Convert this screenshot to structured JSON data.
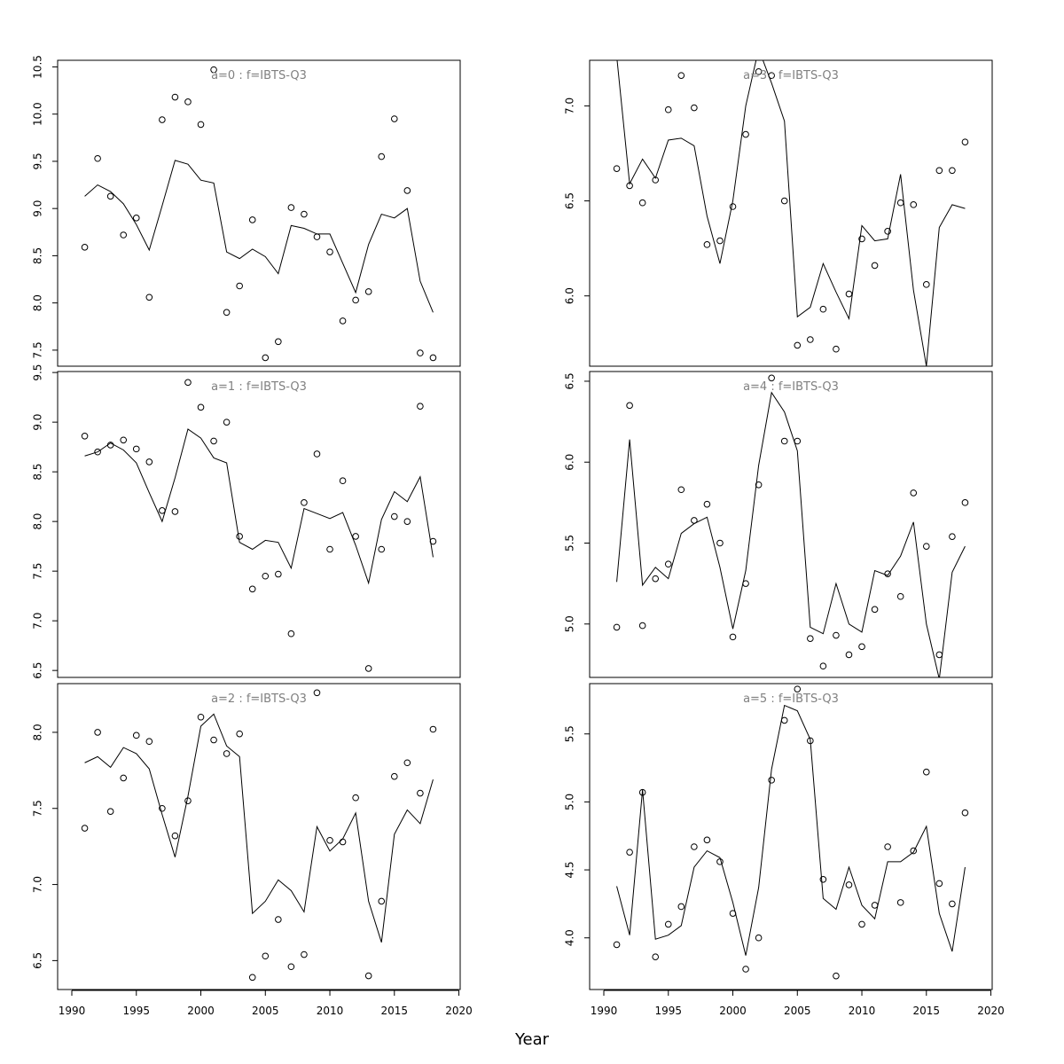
{
  "figure": {
    "xlabel": "Year"
  },
  "chart_data": [
    {
      "type": "scatter+line",
      "title": "a=0 : f=IBTS-Q3",
      "xlim": [
        1988.9,
        2020.1
      ],
      "ylim": [
        7.33,
        10.57
      ],
      "yticks": [
        "7.5",
        "8.0",
        "8.5",
        "9.0",
        "9.5",
        "10.0",
        "10.5"
      ],
      "x": [
        1991,
        1992,
        1993,
        1994,
        1995,
        1996,
        1997,
        1998,
        1999,
        2000,
        2001,
        2002,
        2003,
        2004,
        2005,
        2006,
        2007,
        2008,
        2009,
        2010,
        2011,
        2012,
        2013,
        2014,
        2015,
        2016,
        2017,
        2018
      ],
      "series": [
        {
          "kind": "points",
          "values": [
            8.59,
            9.53,
            9.13,
            8.72,
            8.9,
            8.06,
            9.94,
            10.18,
            10.13,
            9.89,
            10.47,
            7.9,
            8.18,
            8.88,
            7.42,
            7.59,
            9.01,
            8.94,
            8.7,
            8.54,
            7.81,
            8.03,
            8.12,
            9.55,
            9.95,
            9.19,
            7.47,
            7.42
          ]
        },
        {
          "kind": "line",
          "values": [
            9.13,
            9.25,
            9.18,
            9.05,
            8.83,
            8.56,
            9.03,
            9.51,
            9.47,
            9.3,
            9.27,
            8.54,
            8.47,
            8.57,
            8.49,
            8.31,
            8.82,
            8.79,
            8.73,
            8.73,
            8.42,
            8.11,
            8.62,
            8.94,
            8.9,
            9.0,
            8.23,
            7.9
          ]
        }
      ]
    },
    {
      "type": "scatter+line",
      "title": "a=3 : f=IBTS-Q3",
      "xlim": [
        1988.9,
        2020.1
      ],
      "ylim": [
        5.63,
        7.24
      ],
      "yticks": [
        "6.0",
        "6.5",
        "7.0"
      ],
      "x": [
        1991,
        1992,
        1993,
        1994,
        1995,
        1996,
        1997,
        1998,
        1999,
        2000,
        2001,
        2002,
        2003,
        2004,
        2005,
        2006,
        2007,
        2008,
        2009,
        2010,
        2011,
        2012,
        2013,
        2014,
        2015,
        2016,
        2017,
        2018
      ],
      "series": [
        {
          "kind": "points",
          "values": [
            6.67,
            6.58,
            6.49,
            6.61,
            6.98,
            7.16,
            6.99,
            6.27,
            6.29,
            6.47,
            6.85,
            7.18,
            7.16,
            6.5,
            5.74,
            5.77,
            5.93,
            5.72,
            6.01,
            6.3,
            6.16,
            6.34,
            6.49,
            6.48,
            6.06,
            6.66,
            6.66,
            6.81
          ]
        },
        {
          "kind": "line",
          "values": [
            7.26,
            6.59,
            6.72,
            6.62,
            6.82,
            6.83,
            6.79,
            6.42,
            6.17,
            6.5,
            7.0,
            7.3,
            7.12,
            6.92,
            5.89,
            5.94,
            6.17,
            6.02,
            5.88,
            6.37,
            6.29,
            6.3,
            6.64,
            6.03,
            5.63,
            6.36,
            6.48,
            6.46
          ]
        }
      ]
    },
    {
      "type": "scatter+line",
      "title": "a=1 : f=IBTS-Q3",
      "xlim": [
        1988.9,
        2020.1
      ],
      "ylim": [
        6.43,
        9.51
      ],
      "yticks": [
        "6.5",
        "7.0",
        "7.5",
        "8.0",
        "8.5",
        "9.0",
        "9.5"
      ],
      "x": [
        1991,
        1992,
        1993,
        1994,
        1995,
        1996,
        1997,
        1998,
        1999,
        2000,
        2001,
        2002,
        2003,
        2004,
        2005,
        2006,
        2007,
        2008,
        2009,
        2010,
        2011,
        2012,
        2013,
        2014,
        2015,
        2016,
        2017,
        2018
      ],
      "series": [
        {
          "kind": "points",
          "values": [
            8.86,
            8.7,
            8.77,
            8.82,
            8.73,
            8.6,
            8.11,
            8.1,
            9.4,
            9.15,
            8.81,
            9.0,
            7.85,
            7.32,
            7.45,
            7.47,
            6.87,
            8.19,
            8.68,
            7.72,
            8.41,
            7.85,
            6.52,
            7.72,
            8.05,
            8.0,
            9.16,
            7.8
          ]
        },
        {
          "kind": "line",
          "values": [
            8.66,
            8.7,
            8.79,
            8.72,
            8.59,
            8.29,
            8.0,
            8.44,
            8.93,
            8.84,
            8.64,
            8.59,
            7.79,
            7.72,
            7.81,
            7.79,
            7.53,
            8.13,
            8.08,
            8.03,
            8.09,
            7.76,
            7.38,
            8.02,
            8.3,
            8.2,
            8.45,
            7.64
          ]
        }
      ]
    },
    {
      "type": "scatter+line",
      "title": "a=4 : f=IBTS-Q3",
      "xlim": [
        1988.9,
        2020.1
      ],
      "ylim": [
        4.67,
        6.56
      ],
      "yticks": [
        "5.0",
        "5.5",
        "6.0",
        "6.5"
      ],
      "x": [
        1991,
        1992,
        1993,
        1994,
        1995,
        1996,
        1997,
        1998,
        1999,
        2000,
        2001,
        2002,
        2003,
        2004,
        2005,
        2006,
        2007,
        2008,
        2009,
        2010,
        2011,
        2012,
        2013,
        2014,
        2015,
        2016,
        2017,
        2018
      ],
      "series": [
        {
          "kind": "points",
          "values": [
            4.98,
            6.35,
            4.99,
            5.28,
            5.37,
            5.83,
            5.64,
            5.74,
            5.5,
            4.92,
            5.25,
            5.86,
            6.52,
            6.13,
            6.13,
            4.91,
            4.74,
            4.93,
            4.81,
            4.86,
            5.09,
            5.31,
            5.17,
            5.81,
            5.48,
            4.81,
            5.54,
            5.75
          ]
        },
        {
          "kind": "line",
          "values": [
            5.26,
            6.14,
            5.24,
            5.35,
            5.28,
            5.56,
            5.62,
            5.66,
            5.35,
            4.97,
            5.33,
            5.98,
            6.43,
            6.31,
            6.07,
            4.98,
            4.94,
            5.25,
            5.0,
            4.95,
            5.33,
            5.3,
            5.42,
            5.63,
            5.0,
            4.66,
            5.32,
            5.48
          ]
        }
      ]
    },
    {
      "type": "scatter+line",
      "title": "a=2 : f=IBTS-Q3",
      "xlim": [
        1988.9,
        2020.1
      ],
      "ylim": [
        6.31,
        8.32
      ],
      "yticks": [
        "6.5",
        "7.0",
        "7.5",
        "8.0"
      ],
      "x": [
        1991,
        1992,
        1993,
        1994,
        1995,
        1996,
        1997,
        1998,
        1999,
        2000,
        2001,
        2002,
        2003,
        2004,
        2005,
        2006,
        2007,
        2008,
        2009,
        2010,
        2011,
        2012,
        2013,
        2014,
        2015,
        2016,
        2017,
        2018
      ],
      "series": [
        {
          "kind": "points",
          "values": [
            7.37,
            8.0,
            7.48,
            7.7,
            7.98,
            7.94,
            7.5,
            7.32,
            7.55,
            8.1,
            7.95,
            7.86,
            7.99,
            6.39,
            6.53,
            6.77,
            6.46,
            6.54,
            8.26,
            7.29,
            7.28,
            7.57,
            6.4,
            6.89,
            7.71,
            7.8,
            7.6,
            8.02
          ]
        },
        {
          "kind": "line",
          "values": [
            7.8,
            7.84,
            7.77,
            7.9,
            7.86,
            7.76,
            7.46,
            7.18,
            7.58,
            8.04,
            8.12,
            7.91,
            7.84,
            6.81,
            6.89,
            7.03,
            6.96,
            6.82,
            7.38,
            7.22,
            7.3,
            7.47,
            6.89,
            6.62,
            7.33,
            7.49,
            7.4,
            7.69
          ]
        }
      ]
    },
    {
      "type": "scatter+line",
      "title": "a=5 : f=IBTS-Q3",
      "xlim": [
        1988.9,
        2020.1
      ],
      "ylim": [
        3.62,
        5.87
      ],
      "yticks": [
        "4.0",
        "4.5",
        "5.0",
        "5.5"
      ],
      "x": [
        1991,
        1992,
        1993,
        1994,
        1995,
        1996,
        1997,
        1998,
        1999,
        2000,
        2001,
        2002,
        2003,
        2004,
        2005,
        2006,
        2007,
        2008,
        2009,
        2010,
        2011,
        2012,
        2013,
        2014,
        2015,
        2016,
        2017,
        2018
      ],
      "series": [
        {
          "kind": "points",
          "values": [
            3.95,
            4.63,
            5.07,
            3.86,
            4.1,
            4.23,
            4.67,
            4.72,
            4.56,
            4.18,
            3.77,
            4.0,
            5.16,
            5.6,
            5.83,
            5.45,
            4.43,
            3.72,
            4.39,
            4.1,
            4.24,
            4.67,
            4.26,
            4.64,
            5.22,
            4.4,
            4.25,
            4.92
          ]
        },
        {
          "kind": "line",
          "values": [
            4.38,
            4.02,
            5.09,
            3.99,
            4.02,
            4.09,
            4.52,
            4.64,
            4.59,
            4.26,
            3.87,
            4.37,
            5.24,
            5.71,
            5.67,
            5.46,
            4.29,
            4.21,
            4.52,
            4.24,
            4.14,
            4.56,
            4.56,
            4.63,
            4.82,
            4.18,
            3.9,
            4.52
          ]
        }
      ]
    }
  ],
  "x_axis": {
    "ticks": [
      "1990",
      "1995",
      "2000",
      "2005",
      "2010",
      "2015",
      "2020"
    ]
  }
}
